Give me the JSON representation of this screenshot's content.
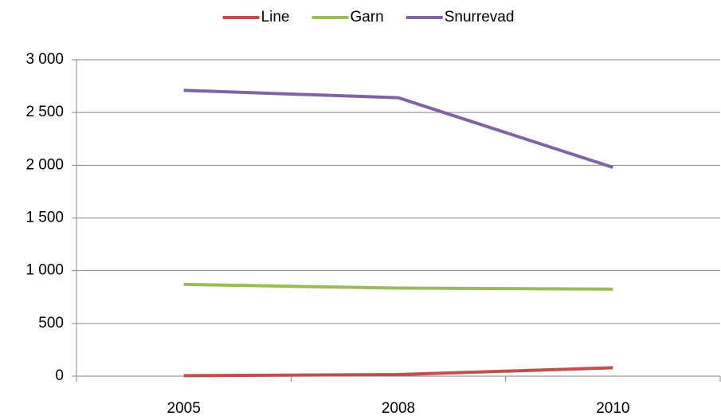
{
  "chart_data": {
    "type": "line",
    "categories": [
      "2005",
      "2008",
      "2010"
    ],
    "series": [
      {
        "name": "Line",
        "color": "#c0504d",
        "values": [
          5,
          15,
          80
        ]
      },
      {
        "name": "Garn",
        "color": "#9bbb59",
        "values": [
          870,
          835,
          825
        ]
      },
      {
        "name": "Snurrevad",
        "color": "#8064a2",
        "values": [
          2710,
          2640,
          1980
        ]
      }
    ],
    "ylim": [
      0,
      3000
    ],
    "yticks": [
      0,
      500,
      {
        "value": 1000,
        "label": "1 000"
      },
      {
        "value": 1500,
        "label": "1 500"
      },
      {
        "value": 2000,
        "label": "2 000"
      },
      {
        "value": 2500,
        "label": "2 500"
      },
      {
        "value": 3000,
        "label": "3 000"
      }
    ],
    "grid": true,
    "legend": "top"
  }
}
